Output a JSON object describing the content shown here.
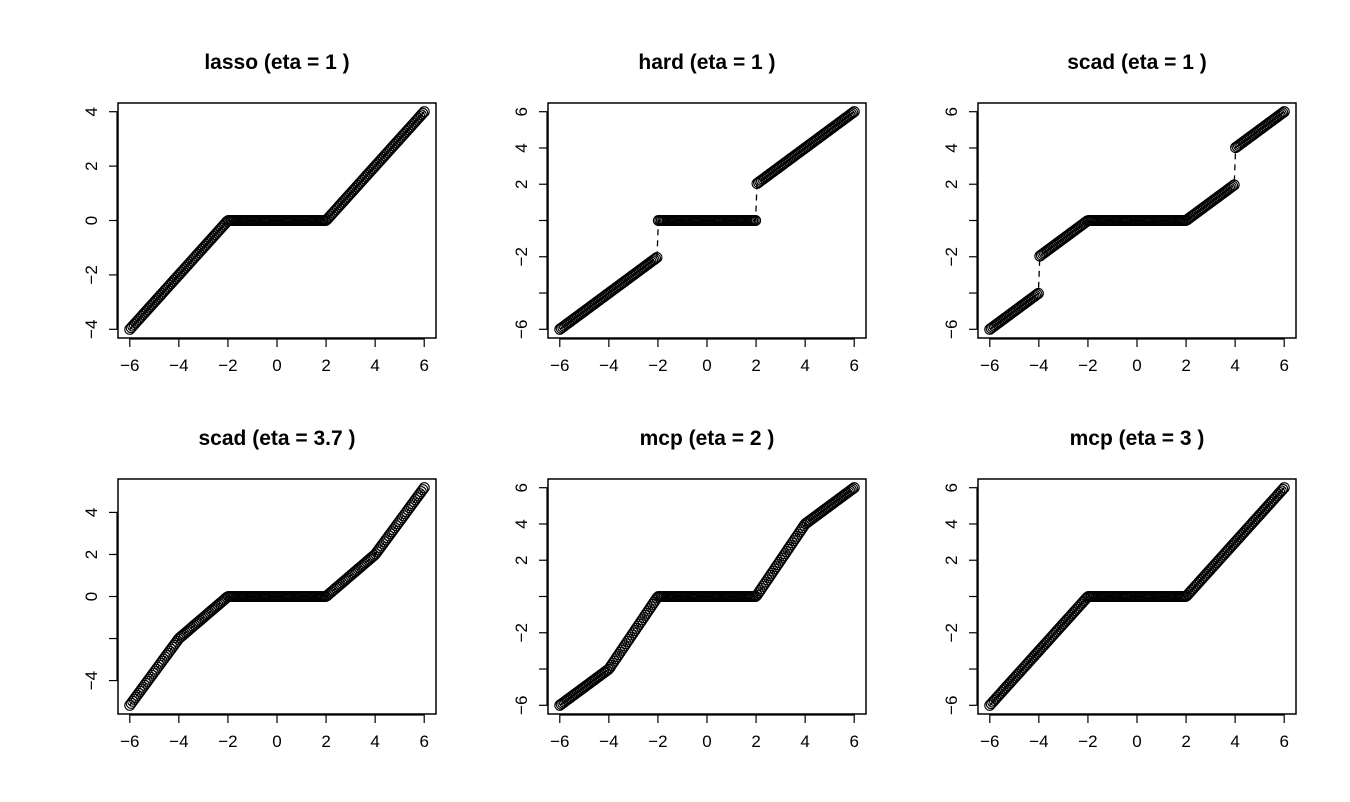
{
  "chart_data": [
    {
      "type": "scatter",
      "title": "lasso (eta = 1 )",
      "xlim": [
        -6,
        6
      ],
      "ylim": [
        -4,
        4
      ],
      "xticks": [
        -6,
        -4,
        -2,
        0,
        2,
        4,
        6
      ],
      "xtick_labels": [
        "−6",
        "−4",
        "−2",
        "0",
        "2",
        "4",
        "6"
      ],
      "yticks": [
        -4,
        -2,
        0,
        2,
        4
      ],
      "ytick_labels": [
        "−4",
        "−2",
        "0",
        "2",
        "4"
      ],
      "segments": [
        [
          -6,
          -4,
          -2,
          0
        ],
        [
          -2,
          0,
          2,
          0
        ],
        [
          2,
          0,
          6,
          4
        ]
      ]
    },
    {
      "type": "scatter",
      "title": "hard (eta = 1 )",
      "xlim": [
        -6,
        6
      ],
      "ylim": [
        -6,
        6
      ],
      "xticks": [
        -6,
        -4,
        -2,
        0,
        2,
        4,
        6
      ],
      "xtick_labels": [
        "−6",
        "−4",
        "−2",
        "0",
        "2",
        "4",
        "6"
      ],
      "yticks": [
        -6,
        -4,
        -2,
        0,
        2,
        4,
        6
      ],
      "ytick_labels": [
        "−6",
        "",
        "−2",
        "",
        "2",
        "4",
        "6"
      ],
      "segments": [
        [
          -6,
          -6,
          -2,
          -2
        ],
        [
          -2,
          0,
          2,
          0
        ],
        [
          2,
          2,
          6,
          6
        ]
      ]
    },
    {
      "type": "scatter",
      "title": "scad (eta = 1 )",
      "xlim": [
        -6,
        6
      ],
      "ylim": [
        -6,
        6
      ],
      "xticks": [
        -6,
        -4,
        -2,
        0,
        2,
        4,
        6
      ],
      "xtick_labels": [
        "−6",
        "−4",
        "−2",
        "0",
        "2",
        "4",
        "6"
      ],
      "yticks": [
        -6,
        -4,
        -2,
        0,
        2,
        4,
        6
      ],
      "ytick_labels": [
        "−6",
        "",
        "−2",
        "",
        "2",
        "4",
        "6"
      ],
      "segments": [
        [
          -6,
          -6,
          -4,
          -4
        ],
        [
          -4,
          -2,
          -2,
          0
        ],
        [
          -2,
          0,
          2,
          0
        ],
        [
          2,
          0,
          4,
          2
        ],
        [
          4,
          4,
          6,
          6
        ]
      ]
    },
    {
      "type": "scatter",
      "title": "scad (eta = 3.7 )",
      "xlim": [
        -6,
        6
      ],
      "ylim": [
        -5.176,
        5.176
      ],
      "xticks": [
        -6,
        -4,
        -2,
        0,
        2,
        4,
        6
      ],
      "xtick_labels": [
        "−6",
        "−4",
        "−2",
        "0",
        "2",
        "4",
        "6"
      ],
      "yticks": [
        -4,
        -2,
        0,
        2,
        4
      ],
      "ytick_labels": [
        "−4",
        "",
        "0",
        "2",
        "4"
      ],
      "segments": [
        [
          -6,
          -5.176,
          -4,
          -2
        ],
        [
          -4,
          -2,
          -2,
          0
        ],
        [
          -2,
          0,
          2,
          0
        ],
        [
          2,
          0,
          4,
          2
        ],
        [
          4,
          2,
          6,
          5.176
        ]
      ]
    },
    {
      "type": "scatter",
      "title": "mcp (eta = 2 )",
      "xlim": [
        -6,
        6
      ],
      "ylim": [
        -6,
        6
      ],
      "xticks": [
        -6,
        -4,
        -2,
        0,
        2,
        4,
        6
      ],
      "xtick_labels": [
        "−6",
        "−4",
        "−2",
        "0",
        "2",
        "4",
        "6"
      ],
      "yticks": [
        -6,
        -4,
        -2,
        0,
        2,
        4,
        6
      ],
      "ytick_labels": [
        "−6",
        "",
        "−2",
        "",
        "2",
        "4",
        "6"
      ],
      "segments": [
        [
          -6,
          -6,
          -4,
          -4
        ],
        [
          -4,
          -4,
          -2,
          0
        ],
        [
          -2,
          0,
          2,
          0
        ],
        [
          2,
          0,
          4,
          4
        ],
        [
          4,
          4,
          6,
          6
        ]
      ]
    },
    {
      "type": "scatter",
      "title": "mcp (eta = 3 )",
      "xlim": [
        -6,
        6
      ],
      "ylim": [
        -6,
        6
      ],
      "xticks": [
        -6,
        -4,
        -2,
        0,
        2,
        4,
        6
      ],
      "xtick_labels": [
        "−6",
        "−4",
        "−2",
        "0",
        "2",
        "4",
        "6"
      ],
      "yticks": [
        -6,
        -4,
        -2,
        0,
        2,
        4,
        6
      ],
      "ytick_labels": [
        "−6",
        "",
        "−2",
        "",
        "2",
        "4",
        "6"
      ],
      "segments": [
        [
          -6,
          -6,
          -2,
          0
        ],
        [
          -2,
          0,
          2,
          0
        ],
        [
          2,
          0,
          6,
          6
        ]
      ]
    }
  ]
}
